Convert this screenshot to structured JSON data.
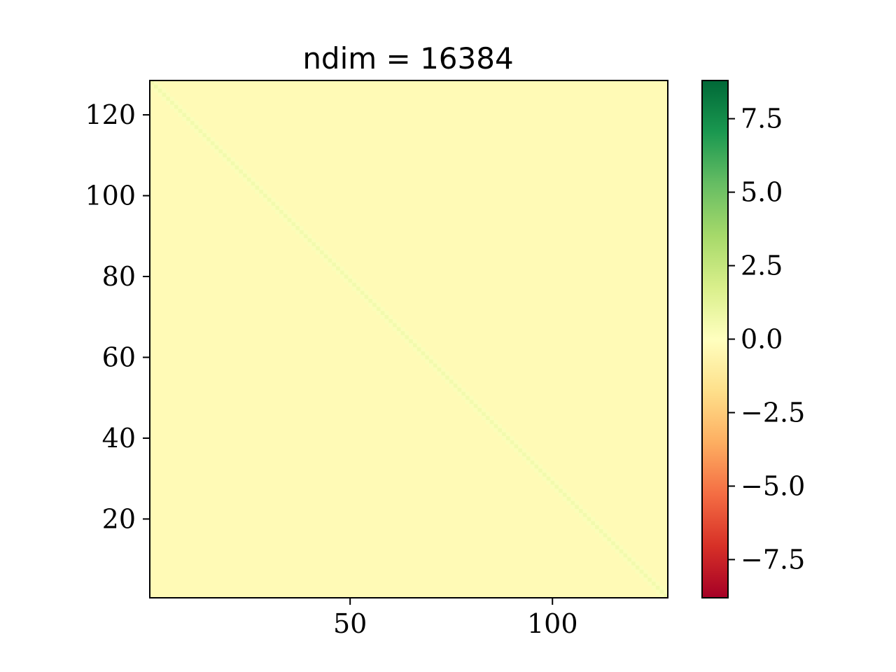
{
  "chart_data": {
    "type": "heatmap",
    "title": "ndim = 16384",
    "xlabel": "",
    "ylabel": "",
    "grid": false,
    "matrix_size": 128,
    "background_value": -0.3,
    "diagonals": [
      {
        "offset": 0,
        "value": 0.6
      },
      {
        "offset": 1,
        "value": 0.2
      },
      {
        "offset": -1,
        "value": 0.2
      }
    ],
    "xlim": [
      0.5,
      128.5
    ],
    "ylim": [
      0.5,
      128.5
    ],
    "x_ticks": [
      {
        "value": 50,
        "label": "50"
      },
      {
        "value": 100,
        "label": "100"
      }
    ],
    "y_ticks": [
      {
        "value": 20,
        "label": "20"
      },
      {
        "value": 40,
        "label": "40"
      },
      {
        "value": 60,
        "label": "60"
      },
      {
        "value": 80,
        "label": "80"
      },
      {
        "value": 100,
        "label": "100"
      },
      {
        "value": 120,
        "label": "120"
      }
    ],
    "colorbar": {
      "colormap": "RdYlGn",
      "range": [
        -8.8,
        8.8
      ],
      "ticks": [
        {
          "value": -7.5,
          "label": "−7.5"
        },
        {
          "value": -5.0,
          "label": "−5.0"
        },
        {
          "value": -2.5,
          "label": "−2.5"
        },
        {
          "value": 0.0,
          "label": "0.0"
        },
        {
          "value": 2.5,
          "label": "2.5"
        },
        {
          "value": 5.0,
          "label": "5.0"
        },
        {
          "value": 7.5,
          "label": "7.5"
        }
      ],
      "stops": [
        "#a50026",
        "#d73027",
        "#f46d43",
        "#fdae61",
        "#fee08b",
        "#ffffbf",
        "#d9ef8b",
        "#a6d96a",
        "#66bd63",
        "#1a9850",
        "#006837"
      ]
    }
  }
}
